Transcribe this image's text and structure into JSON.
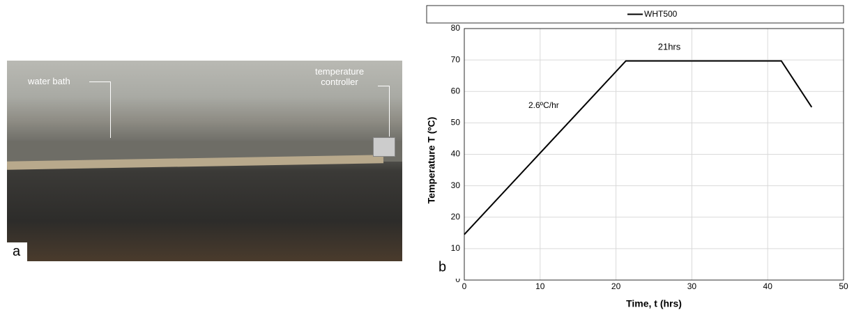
{
  "photo": {
    "panel_label": "a",
    "labels": [
      "water bath",
      "temperature controller"
    ]
  },
  "chart_data": {
    "type": "line",
    "panel_label": "b",
    "xlabel": "Time, t (hrs)",
    "ylabel": "Temperature T (ºC)",
    "annotations": [
      "2.6ºC/hr",
      "21hrs"
    ],
    "x": [
      0,
      21.3,
      41.8,
      45.8
    ],
    "series": [
      {
        "name": "WHT500",
        "color": "#000000",
        "values": [
          14.5,
          69.7,
          69.7,
          55
        ]
      }
    ],
    "xlim": [
      0,
      50
    ],
    "xticks": [
      0,
      10,
      20,
      30,
      40,
      50
    ],
    "ylim": [
      0,
      80
    ],
    "yticks": [
      0,
      10,
      20,
      30,
      40,
      50,
      60,
      70,
      80
    ],
    "grid": true,
    "legend": "top"
  }
}
